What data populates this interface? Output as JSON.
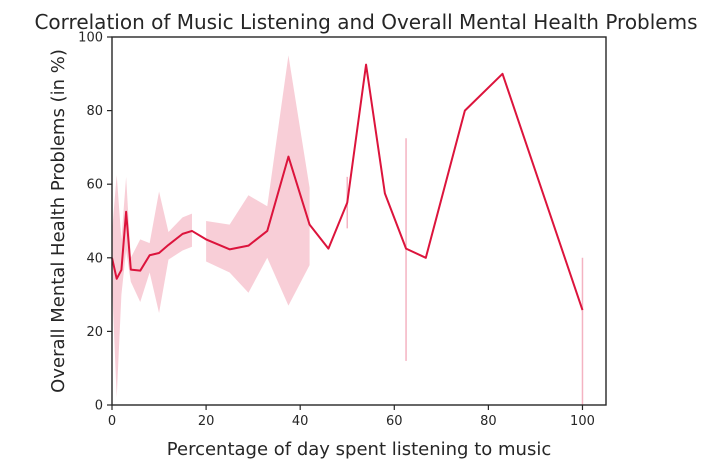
{
  "chart_data": {
    "type": "line",
    "title": "Correlation of Music Listening and Overall Mental Health Problems",
    "xlabel": "Percentage of day spent listening to music",
    "ylabel": "Overall Mental Health Problems (in %)",
    "xlim": [
      0,
      105
    ],
    "ylim": [
      0,
      100
    ],
    "xticks": [
      0,
      20,
      40,
      60,
      80,
      100
    ],
    "yticks": [
      0,
      20,
      40,
      60,
      80,
      100
    ],
    "grid": false,
    "line_color": "#dc143c",
    "band_color": "#f4b3c2",
    "series": [
      {
        "x": [
          0,
          1,
          2,
          3,
          4,
          6,
          8,
          10,
          12,
          15,
          17,
          20,
          25,
          29,
          33,
          37.5,
          42,
          46,
          50,
          54,
          58,
          62.5,
          66.7,
          75,
          83,
          100
        ],
        "y": [
          40,
          34.3,
          36.7,
          52.5,
          36.8,
          36.5,
          40.7,
          41.3,
          43.5,
          46.5,
          47.3,
          45,
          42.3,
          43.3,
          47.3,
          67.5,
          49,
          42.5,
          55,
          92.5,
          57.5,
          42.5,
          40,
          80,
          90,
          25.8
        ],
        "ci": [
          {
            "x": 0,
            "low": 33,
            "high": 47
          },
          {
            "x": 1,
            "low": 2,
            "high": 62.5
          },
          {
            "x": 2,
            "low": 30,
            "high": 45
          },
          {
            "x": 3,
            "low": 42,
            "high": 62
          },
          {
            "x": 4,
            "low": 33.5,
            "high": 40
          },
          {
            "x": 6,
            "low": 28,
            "high": 45
          },
          {
            "x": 8,
            "low": 36,
            "high": 44
          },
          {
            "x": 10,
            "low": 25,
            "high": 58
          },
          {
            "x": 12,
            "low": 39.5,
            "high": 47
          },
          {
            "x": 15,
            "low": 42,
            "high": 51
          },
          {
            "x": 17,
            "low": 43,
            "high": 52
          }
        ],
        "ci2": [
          {
            "x": 20,
            "low": 39,
            "high": 50
          },
          {
            "x": 25,
            "low": 36,
            "high": 49
          },
          {
            "x": 29,
            "low": 30.5,
            "high": 57
          },
          {
            "x": 33,
            "low": 40,
            "high": 54
          },
          {
            "x": 37.5,
            "low": 27,
            "high": 95
          },
          {
            "x": 42,
            "low": 38,
            "high": 59
          }
        ],
        "ci_vertical": [
          {
            "x": 50,
            "low": 48,
            "high": 62
          },
          {
            "x": 62.5,
            "low": 12,
            "high": 72.5
          },
          {
            "x": 100,
            "low": 0,
            "high": 40
          }
        ]
      }
    ]
  }
}
